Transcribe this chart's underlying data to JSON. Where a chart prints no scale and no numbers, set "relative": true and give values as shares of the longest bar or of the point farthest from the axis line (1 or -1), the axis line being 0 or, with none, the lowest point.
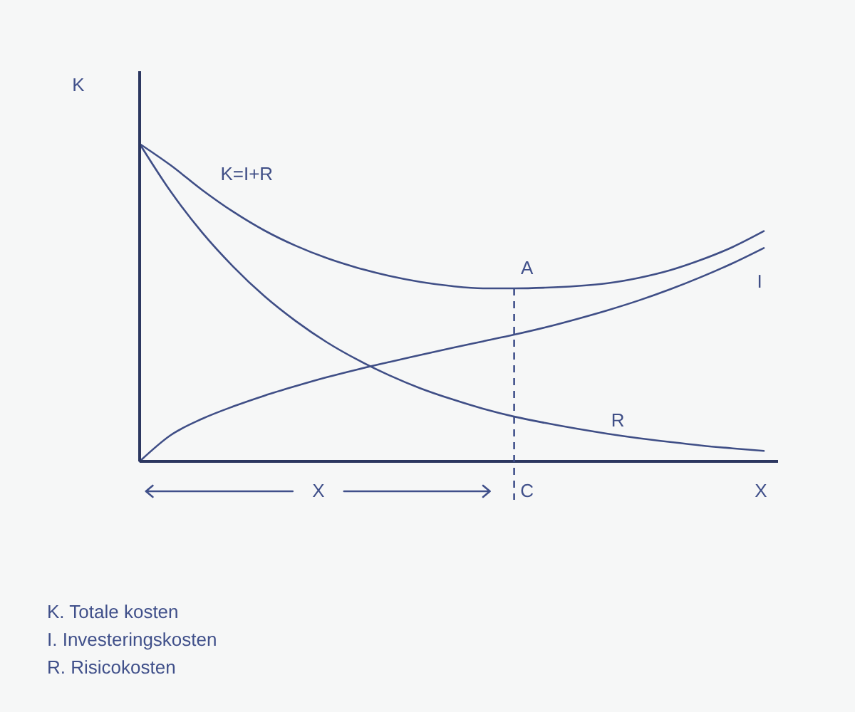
{
  "chart_data": {
    "type": "line",
    "relative": true,
    "categories": [
      null,
      null,
      null,
      null,
      null,
      null,
      null,
      null,
      null,
      null,
      null,
      null,
      null,
      null,
      null,
      null,
      null,
      null,
      null,
      null,
      null
    ],
    "xlabel": "X",
    "ylabel": "K",
    "series": [
      {
        "name": "K=I+R",
        "color": "#3f4e86",
        "values": [
          1,
          0.932,
          0.855,
          0.786,
          0.727,
          0.679,
          0.64,
          0.609,
          0.584,
          0.565,
          0.552,
          0.545,
          0.545,
          0.547,
          0.552,
          0.561,
          0.578,
          0.602,
          0.635,
          0.675,
          0.725
        ]
      },
      {
        "name": "I",
        "color": "#3f4e86",
        "values": [
          0,
          0.083,
          0.134,
          0.173,
          0.207,
          0.237,
          0.265,
          0.29,
          0.313,
          0.335,
          0.357,
          0.378,
          0.399,
          0.422,
          0.448,
          0.476,
          0.507,
          0.542,
          0.581,
          0.624,
          0.672
        ]
      },
      {
        "name": "R",
        "color": "#3f4e86",
        "values": [
          1,
          0.849,
          0.721,
          0.613,
          0.52,
          0.442,
          0.375,
          0.319,
          0.271,
          0.23,
          0.196,
          0.166,
          0.141,
          0.121,
          0.103,
          0.087,
          0.073,
          0.061,
          0.05,
          0.041,
          0.033
        ]
      }
    ],
    "annotations": [
      {
        "text": "A",
        "y": 0.545
      },
      "C",
      "X",
      "K. Totale kosten",
      "I. Investeringskosten",
      "R. Risicokosten"
    ]
  }
}
